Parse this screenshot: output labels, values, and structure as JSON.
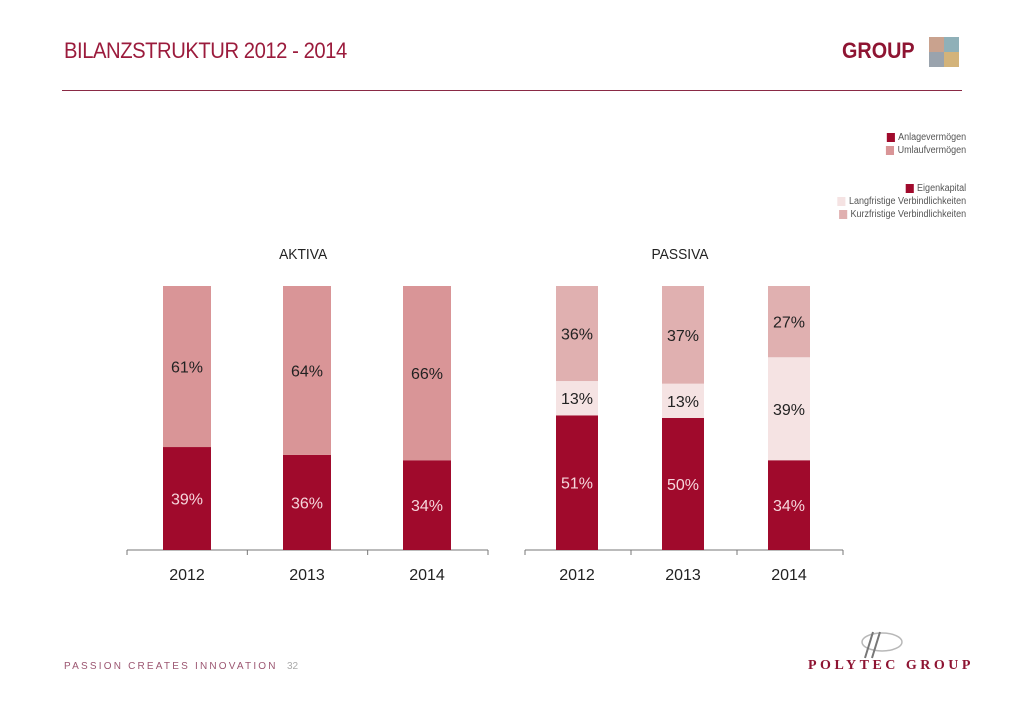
{
  "header": {
    "title": "BILANZSTRUKTUR 2012 - 2014",
    "brand": "GROUP",
    "brand_mark_colors": [
      "#c9a28e",
      "#8fb0b8",
      "#9aa3ad",
      "#d3b37a"
    ]
  },
  "legend_aktiva": [
    {
      "label": "Anlagevermögen",
      "color": "#a00a2c"
    },
    {
      "label": "Umlaufvermögen",
      "color": "#d99597"
    }
  ],
  "legend_passiva": [
    {
      "label": "Eigenkapital",
      "color": "#a00a2c"
    },
    {
      "label": "Langfristige Verbindlichkeiten",
      "color": "#f5e3e3"
    },
    {
      "label": "Kurzfristige Verbindlichkeiten",
      "color": "#e0b0b0"
    }
  ],
  "chart_data": [
    {
      "type": "bar",
      "stacked": true,
      "normalized": true,
      "title": "AKTIVA",
      "categories": [
        "2012",
        "2013",
        "2014"
      ],
      "series": [
        {
          "name": "Anlagevermögen",
          "values": [
            39,
            36,
            34
          ],
          "labels": [
            "39%",
            "36%",
            "34%"
          ],
          "color": "#a00a2c",
          "label_color": "#f6d6dc"
        },
        {
          "name": "Umlaufvermögen",
          "values": [
            61,
            64,
            66
          ],
          "labels": [
            "61%",
            "64%",
            "66%"
          ],
          "color": "#d99597",
          "label_color": "#222222"
        }
      ],
      "ylim": [
        0,
        100
      ],
      "grid": false,
      "legend": "top-right"
    },
    {
      "type": "bar",
      "stacked": true,
      "normalized": true,
      "title": "PASSIVA",
      "categories": [
        "2012",
        "2013",
        "2014"
      ],
      "series": [
        {
          "name": "Eigenkapital",
          "values": [
            51,
            50,
            34
          ],
          "labels": [
            "51%",
            "50%",
            "34%"
          ],
          "color": "#a00a2c",
          "label_color": "#f6d6dc"
        },
        {
          "name": "Langfristige Verbindlichkeiten",
          "values": [
            13,
            13,
            39
          ],
          "labels": [
            "13%",
            "13%",
            "39%"
          ],
          "color": "#f5e3e3",
          "label_color": "#222222"
        },
        {
          "name": "Kurzfristige Verbindlichkeiten",
          "values": [
            36,
            37,
            27
          ],
          "labels": [
            "36%",
            "37%",
            "27%"
          ],
          "color": "#e0b0b0",
          "label_color": "#222222"
        }
      ],
      "ylim": [
        0,
        100
      ],
      "grid": false,
      "legend": "top-right"
    }
  ],
  "footer": {
    "tagline": "PASSION CREATES INNOVATION",
    "page_number": "32",
    "logo_text": "POLYTEC GROUP"
  }
}
